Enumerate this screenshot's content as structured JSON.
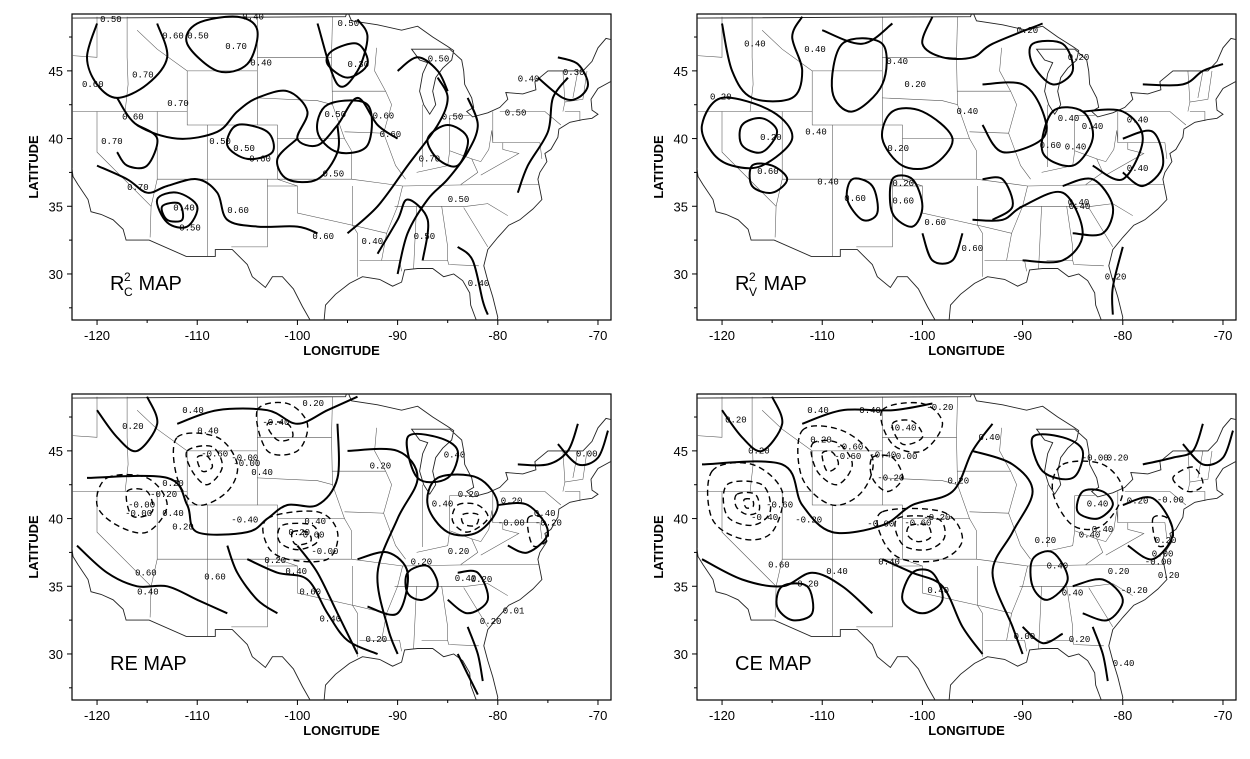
{
  "axes": {
    "xlabel": "LONGITUDE",
    "ylabel": "LATITUDE",
    "xticks": [
      "-120",
      "-110",
      "-100",
      "-90",
      "-80",
      "-70"
    ],
    "yticks": [
      "30",
      "35",
      "40",
      "45"
    ]
  },
  "panels": [
    {
      "id": "rc2",
      "title": "R",
      "title_sup": "2",
      "title_sub": "C",
      "title_rest": " MAP",
      "contour_labels": [
        "0.50",
        "0.40",
        "0.60",
        "0.50",
        "0.40",
        "0.50",
        "0.30",
        "0.50",
        "0.70",
        "0.70",
        "0.30",
        "0.60",
        "0.70",
        "0.40",
        "0.60",
        "0.50",
        "0.50",
        "0.50",
        "0.60",
        "0.50",
        "0.70",
        "0.50",
        "0.60",
        "0.70",
        "0.60",
        "0.50",
        "0.70",
        "0.40",
        "0.50",
        "0.60",
        "0.50",
        "0.50",
        "0.60",
        "0.40",
        "0.40"
      ]
    },
    {
      "id": "rv2",
      "title": "R",
      "title_sup": "2",
      "title_sub": "V",
      "title_rest": " MAP",
      "contour_labels": [
        "0.40",
        "0.40",
        "0.40",
        "0.20",
        "0.20",
        "0.20",
        "0.40",
        "0.20",
        "0.20",
        "0.40",
        "0.40",
        "0.20",
        "0.60",
        "0.40",
        "0.60",
        "0.20",
        "0.60",
        "0.40",
        "0.40",
        "0.40",
        "0.60",
        "0.40",
        "0.40",
        "0.60",
        "0.40",
        "0.60",
        "0.20"
      ]
    },
    {
      "id": "re",
      "title": "RE MAP",
      "contour_labels": [
        "0.40",
        "0.20",
        "0.40",
        "-0.40",
        "0.20",
        "-0.60",
        "-0.00",
        "-0.00",
        "0.20",
        "0.40",
        "-0.20",
        "-0.00",
        "0.40",
        "0.20",
        "-0.00",
        "-0.40",
        "0.40",
        "0.20",
        "-0.60",
        "0.20",
        "0.40",
        "-0.00",
        "0.60",
        "0.60",
        "0.40",
        "0.60",
        "0.40",
        "0.20",
        "0.40",
        "0.20",
        "0.40",
        "0.20",
        "-0.00",
        "0.20",
        "0.40",
        "0.20",
        "0.40",
        "-0.20",
        "0.20",
        "0.20",
        "0.20",
        "0.01",
        "0.00"
      ]
    },
    {
      "id": "ce",
      "title": "CE MAP",
      "contour_labels": [
        "0.20",
        "0.40",
        "0.40",
        "-0.20",
        "-0.40",
        "0.20",
        "-0.60",
        "-0.60",
        "-0.40",
        "-0.00",
        "-0.20",
        "0.20",
        "0.40",
        "-0.00",
        "-0.60",
        "-0.40",
        "-0.20",
        "-0.00",
        "-0.60",
        "-0.20",
        "0.20",
        "0.60",
        "0.40",
        "0.40",
        "0.20",
        "0.40",
        "0.20",
        "0.40",
        "0.40",
        "0.20",
        "0.40",
        "0.20",
        "-0.00",
        "0.00",
        "0.20",
        "0.40",
        "0.20",
        "-0.00",
        "0.20",
        "-0.20",
        "0.40",
        "0.00",
        "0.20",
        "0.40"
      ]
    }
  ]
}
